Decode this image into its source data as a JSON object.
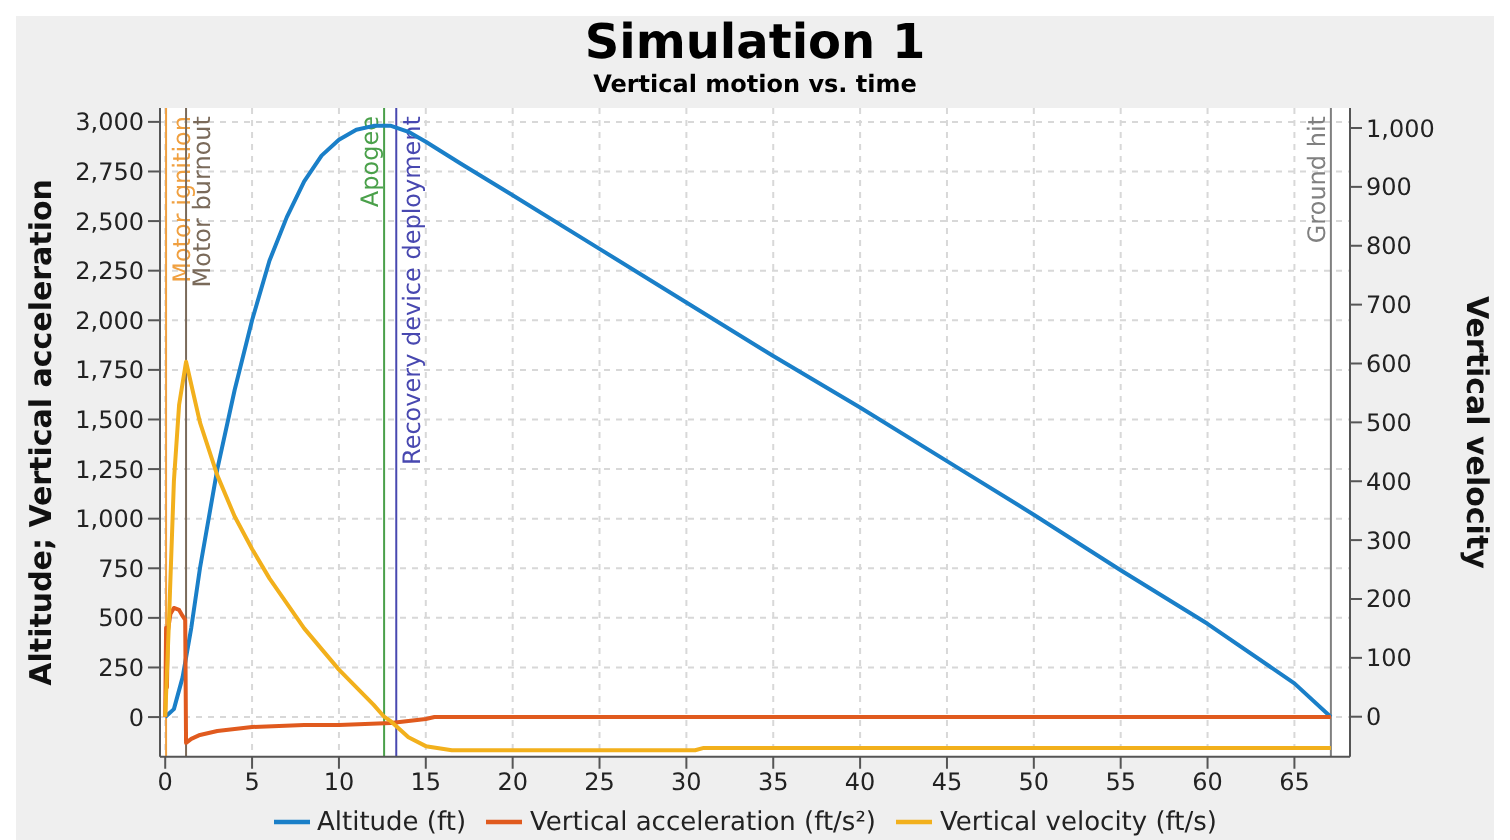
{
  "chart_data": {
    "type": "line",
    "title": "Simulation 1",
    "subtitle": "Vertical motion vs. time",
    "ylabel": "Altitude; Vertical acceleration",
    "y2label": "Vertical velocity",
    "xlim": [
      -0.3,
      68.2
    ],
    "xticks": [
      0,
      5,
      10,
      15,
      20,
      25,
      30,
      35,
      40,
      45,
      50,
      55,
      60,
      65
    ],
    "ylim": [
      -200,
      3070
    ],
    "yticks": [
      0,
      250,
      500,
      750,
      {
        "value": 1000,
        "label": "1,000"
      },
      {
        "value": 1250,
        "label": "1,250"
      },
      {
        "value": 1500,
        "label": "1,500"
      },
      {
        "value": 1750,
        "label": "1,750"
      },
      {
        "value": 2000,
        "label": "2,000"
      },
      {
        "value": 2250,
        "label": "2,250"
      },
      {
        "value": 2500,
        "label": "2,500"
      },
      {
        "value": 2750,
        "label": "2,750"
      },
      {
        "value": 3000,
        "label": "3,000"
      }
    ],
    "y2lim": [
      -68,
      1034
    ],
    "y2ticks": [
      0,
      100,
      200,
      300,
      400,
      500,
      600,
      700,
      800,
      900,
      {
        "value": 1000,
        "label": "1,000"
      }
    ],
    "grid": true,
    "legend": "bottom",
    "marker": "none",
    "line_style": "solid",
    "series": [
      {
        "name": "Altitude (ft)",
        "color": "#1a7fc8",
        "x": [
          0,
          0.5,
          1,
          1.5,
          2,
          3,
          4,
          5,
          6,
          7,
          8,
          9,
          10,
          11,
          12,
          13,
          14,
          15,
          17,
          20,
          25,
          30,
          35,
          40,
          45,
          50,
          55,
          60,
          65,
          67.1
        ],
        "values": [
          0,
          40,
          200,
          450,
          750,
          1250,
          1650,
          2000,
          2300,
          2520,
          2700,
          2830,
          2910,
          2960,
          2980,
          2980,
          2950,
          2900,
          2790,
          2630,
          2360,
          2090,
          1820,
          1560,
          1290,
          1020,
          740,
          470,
          170,
          0
        ]
      },
      {
        "name": "Vertical acceleration (ft/s²)",
        "color": "#e05a1e",
        "x": [
          0,
          0.05,
          0.1,
          0.15,
          0.3,
          0.5,
          0.8,
          1.0,
          1.15,
          1.2,
          1.5,
          2,
          3,
          5,
          8,
          10,
          13,
          14,
          15,
          15.5,
          67.1
        ],
        "values": [
          0,
          450,
          150,
          430,
          520,
          550,
          540,
          510,
          490,
          -130,
          -110,
          -90,
          -70,
          -50,
          -40,
          -40,
          -30,
          -20,
          -10,
          0,
          0
        ]
      },
      {
        "name": "Vertical velocity (ft/s)",
        "color": "#f2b01c",
        "axis": "y2",
        "x": [
          0,
          0.2,
          0.5,
          0.8,
          1.2,
          2,
          3,
          4,
          5,
          6,
          8,
          10,
          12,
          12.6,
          13,
          14,
          15,
          16.5,
          30.5,
          31,
          67.1
        ],
        "values": [
          0,
          150,
          400,
          530,
          603,
          500,
          410,
          340,
          285,
          235,
          150,
          80,
          20,
          0,
          -8,
          -35,
          -50,
          -57,
          -57,
          -53,
          -53
        ]
      }
    ],
    "ref_lines": [
      {
        "axis": "x",
        "value": 0.05,
        "label": "Motor ignition",
        "color": "#f0a040"
      },
      {
        "axis": "x",
        "value": 1.2,
        "label": "Motor burnout",
        "color": "#7a6a5a"
      },
      {
        "axis": "x",
        "value": 12.6,
        "label": "Apogee",
        "color": "#4aa04a"
      },
      {
        "axis": "x",
        "value": 13.3,
        "label": "Recovery device deployment",
        "color": "#4848b0"
      },
      {
        "axis": "x",
        "value": 67.1,
        "label": "Ground hit",
        "color": "#808080"
      }
    ]
  }
}
